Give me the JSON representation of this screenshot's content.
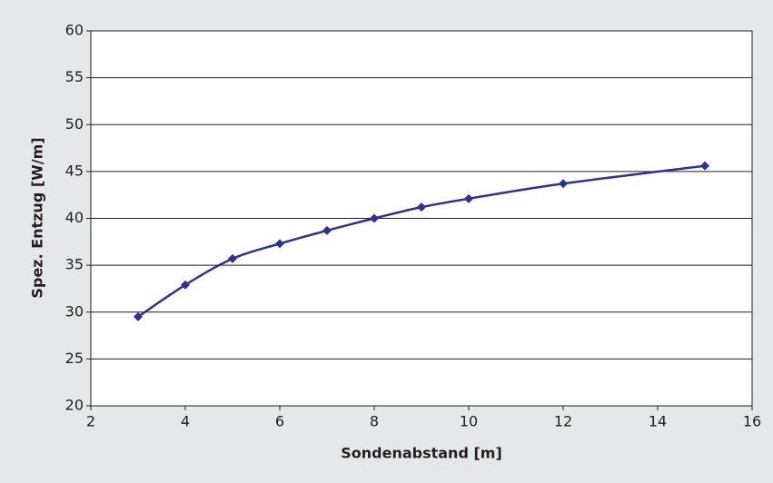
{
  "chart_data": {
    "type": "line",
    "x_label": "Sondenabstand [m]",
    "y_label": "Spez. Entzug [W/m]",
    "x": [
      3,
      4,
      5,
      6,
      7,
      8,
      9,
      10,
      12,
      15
    ],
    "series": [
      {
        "color": "#2e3192",
        "values": [
          29.5,
          32.9,
          35.7,
          37.3,
          38.7,
          40.0,
          41.2,
          42.1,
          43.7,
          45.6
        ]
      }
    ],
    "xlim": [
      2,
      16
    ],
    "xticks": [
      2,
      4,
      6,
      8,
      10,
      12,
      14,
      16
    ],
    "ylim": [
      20,
      60
    ],
    "yticks": [
      20,
      25,
      30,
      35,
      40,
      45,
      50,
      55,
      60
    ],
    "grid": true,
    "smooth": true,
    "marker": "diamond"
  }
}
